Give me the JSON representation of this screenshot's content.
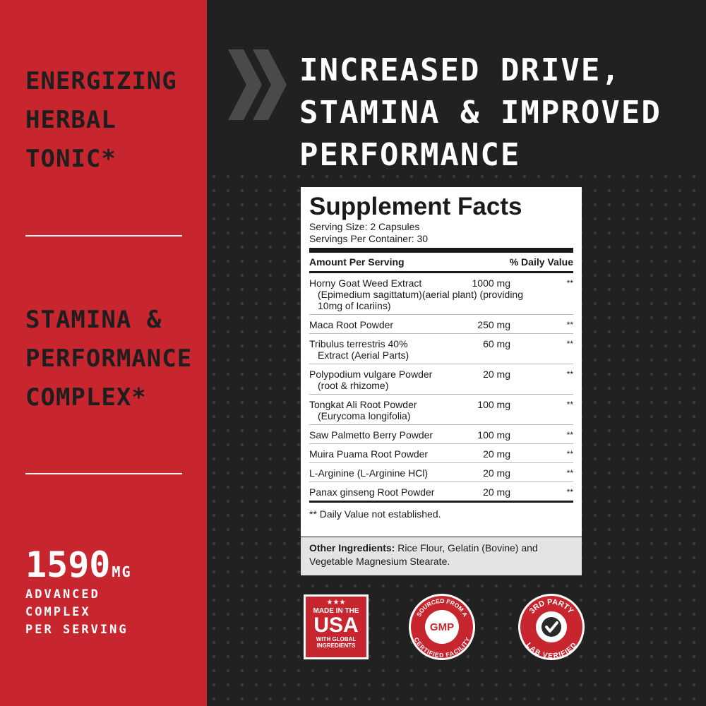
{
  "left": {
    "heading1": [
      "ENERGIZING",
      "HERBAL",
      "TONIC*"
    ],
    "heading2": [
      "STAMINA &",
      "PERFORMANCE",
      "COMPLEX*"
    ],
    "big_number": "1590",
    "big_unit": "MG",
    "small_lines": [
      "ADVANCED",
      "COMPLEX",
      "PER SERVING"
    ]
  },
  "headline": [
    "INCREASED DRIVE,",
    "STAMINA & IMPROVED",
    "PERFORMANCE"
  ],
  "facts": {
    "title": "Supplement Facts",
    "serving_size": "Serving Size: 2 Capsules",
    "servings_per_container": "Servings Per Container: 30",
    "col_amount": "Amount Per Serving",
    "col_dv": "% Daily Value",
    "rows": [
      {
        "name": "Horny Goat Weed Extract",
        "sub": "(Epimedium sagittatum)(aerial plant) (providing 10mg of Icariins)",
        "amount": "1000 mg",
        "dv": "**"
      },
      {
        "name": "Maca Root Powder",
        "sub": "",
        "amount": "250 mg",
        "dv": "**"
      },
      {
        "name": "Tribulus terrestris 40%",
        "sub": "Extract (Aerial Parts)",
        "amount": "60 mg",
        "dv": "**"
      },
      {
        "name": "Polypodium vulgare Powder",
        "sub": "(root & rhizome)",
        "amount": "20 mg",
        "dv": "**"
      },
      {
        "name": "Tongkat Ali Root Powder",
        "sub": "(Eurycoma longifolia)",
        "amount": "100 mg",
        "dv": "**"
      },
      {
        "name": "Saw Palmetto Berry Powder",
        "sub": "",
        "amount": "100 mg",
        "dv": "**"
      },
      {
        "name": "Muira Puama Root Powder",
        "sub": "",
        "amount": "20 mg",
        "dv": "**"
      },
      {
        "name": "L-Arginine (L-Arginine HCl)",
        "sub": "",
        "amount": "20 mg",
        "dv": "**"
      },
      {
        "name": "Panax ginseng Root Powder",
        "sub": "",
        "amount": "20 mg",
        "dv": "**"
      }
    ],
    "footnote": "** Daily Value not established.",
    "other_label": "Other Ingredients:",
    "other_text": "Rice Flour, Gelatin (Bovine) and Vegetable Magnesium Stearate."
  },
  "badges": {
    "usa_stars": "★★★",
    "usa_made": "MADE IN THE",
    "usa_country": "USA",
    "usa_global1": "WITH GLOBAL",
    "usa_global2": "INGREDIENTS",
    "gmp_top": "SOURCED FROM A",
    "gmp_center": "GMP",
    "gmp_bottom": "CERTIFIED FACILITY",
    "lab_top": "3RD PARTY",
    "lab_bottom": "LAB VERIFIED"
  },
  "colors": {
    "red": "#c8262f",
    "dark": "#212121",
    "white": "#ffffff"
  }
}
